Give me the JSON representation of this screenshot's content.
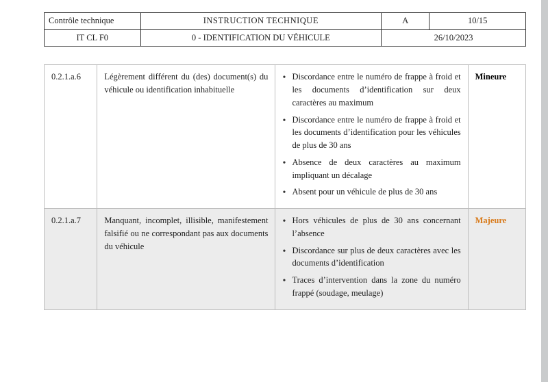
{
  "header": {
    "left_top": "Contrôle technique",
    "left_bottom": "IT CL F0",
    "title": "INSTRUCTION TECHNIQUE",
    "subtitle": "0 - IDENTIFICATION DU VÉHICULE",
    "rev": "A",
    "page": "10/15",
    "date": "26/10/2023"
  },
  "rows": [
    {
      "code": "0.2.1.a.6",
      "desc": "Légèrement différent du (des) document(s) du véhicule ou identification inhabituelle",
      "bullets": [
        "Discordance entre le numéro de frappe à froid et les documents d’identification sur deux caractères au maximum",
        "Discordance entre le numéro de frappe à froid et les documents d’identification pour les véhicules de plus de 30 ans",
        "Absence de deux caractères au maximum impliquant un décalage",
        "Absent pour un véhicule de plus de 30 ans"
      ],
      "severity": "Mineure",
      "sev_color": "#000000",
      "shaded": false
    },
    {
      "code": "0.2.1.a.7",
      "desc": "Manquant, incomplet, illisible, manifestement falsifié ou ne correspondant pas aux documents du véhicule",
      "bullets": [
        "Hors véhicules de plus de 30 ans concernant l’absence",
        "Discordance sur plus de deux caractères avec les documents d’identification",
        "Traces d’intervention dans la zone du numéro frappé (soudage, meulage)"
      ],
      "severity": "Majeure",
      "sev_color": "#d87a1a",
      "shaded": true
    }
  ],
  "layout": {
    "header_col_widths_pct": [
      20,
      50,
      10,
      20
    ],
    "main_col_widths_pct": [
      11,
      37,
      40,
      12
    ]
  }
}
